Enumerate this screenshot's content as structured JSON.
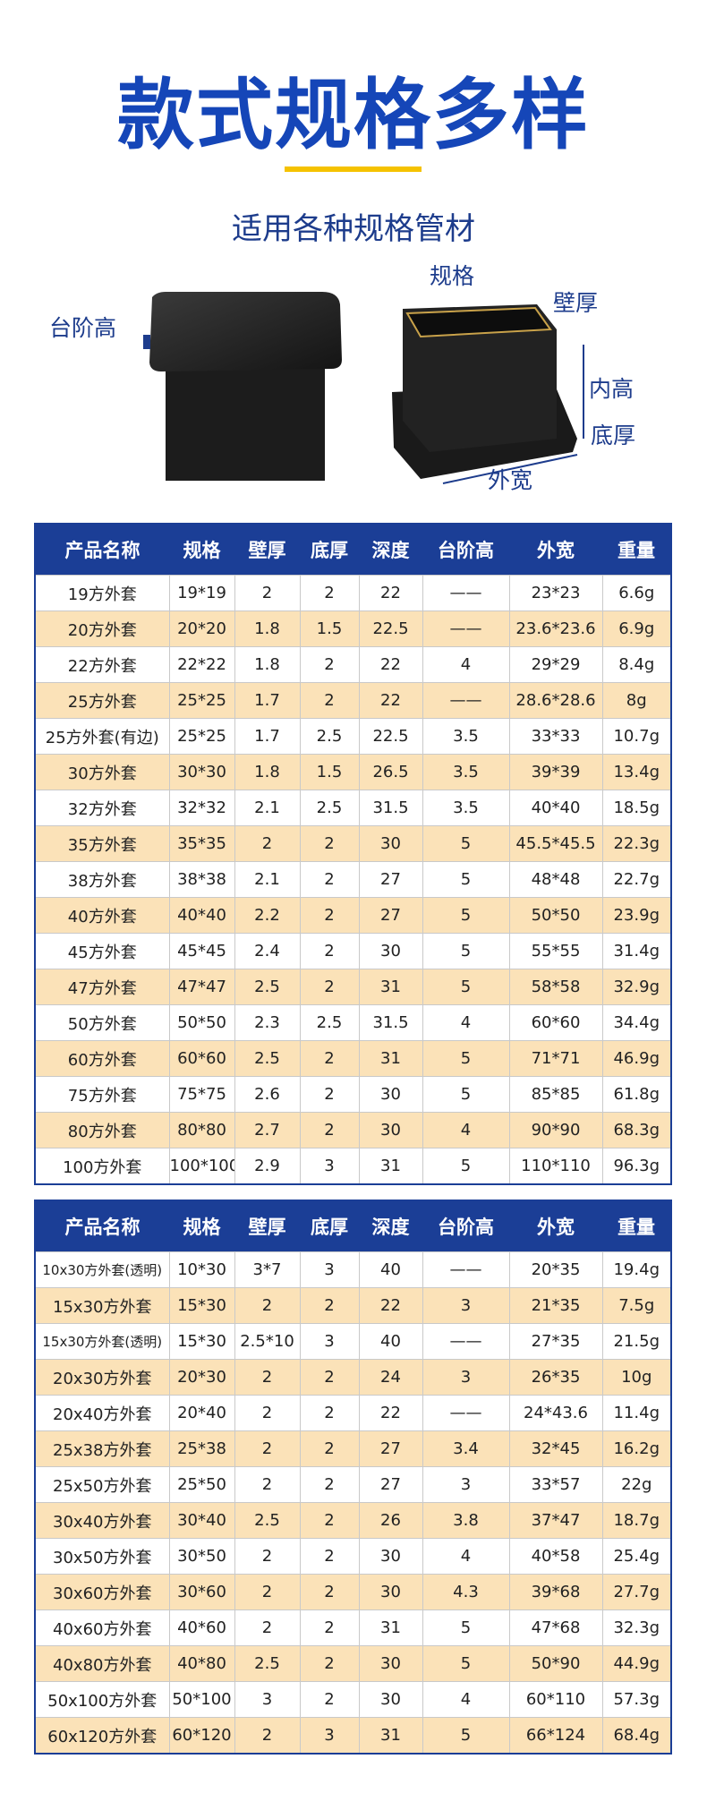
{
  "header": {
    "title": "款式规格多样",
    "subtitle": "适用各种规格管材"
  },
  "diagram": {
    "labels": [
      "台阶高",
      "规格",
      "壁厚",
      "内高",
      "底厚",
      "外宽"
    ]
  },
  "table1": {
    "columns": [
      "产品名称",
      "规格",
      "壁厚",
      "底厚",
      "深度",
      "台阶高",
      "外宽",
      "重量"
    ],
    "rows": [
      [
        "19方外套",
        "19*19",
        "2",
        "2",
        "22",
        "——",
        "23*23",
        "6.6g"
      ],
      [
        "20方外套",
        "20*20",
        "1.8",
        "1.5",
        "22.5",
        "——",
        "23.6*23.6",
        "6.9g"
      ],
      [
        "22方外套",
        "22*22",
        "1.8",
        "2",
        "22",
        "4",
        "29*29",
        "8.4g"
      ],
      [
        "25方外套",
        "25*25",
        "1.7",
        "2",
        "22",
        "——",
        "28.6*28.6",
        "8g"
      ],
      [
        "25方外套(有边)",
        "25*25",
        "1.7",
        "2.5",
        "22.5",
        "3.5",
        "33*33",
        "10.7g"
      ],
      [
        "30方外套",
        "30*30",
        "1.8",
        "1.5",
        "26.5",
        "3.5",
        "39*39",
        "13.4g"
      ],
      [
        "32方外套",
        "32*32",
        "2.1",
        "2.5",
        "31.5",
        "3.5",
        "40*40",
        "18.5g"
      ],
      [
        "35方外套",
        "35*35",
        "2",
        "2",
        "30",
        "5",
        "45.5*45.5",
        "22.3g"
      ],
      [
        "38方外套",
        "38*38",
        "2.1",
        "2",
        "27",
        "5",
        "48*48",
        "22.7g"
      ],
      [
        "40方外套",
        "40*40",
        "2.2",
        "2",
        "27",
        "5",
        "50*50",
        "23.9g"
      ],
      [
        "45方外套",
        "45*45",
        "2.4",
        "2",
        "30",
        "5",
        "55*55",
        "31.4g"
      ],
      [
        "47方外套",
        "47*47",
        "2.5",
        "2",
        "31",
        "5",
        "58*58",
        "32.9g"
      ],
      [
        "50方外套",
        "50*50",
        "2.3",
        "2.5",
        "31.5",
        "4",
        "60*60",
        "34.4g"
      ],
      [
        "60方外套",
        "60*60",
        "2.5",
        "2",
        "31",
        "5",
        "71*71",
        "46.9g"
      ],
      [
        "75方外套",
        "75*75",
        "2.6",
        "2",
        "30",
        "5",
        "85*85",
        "61.8g"
      ],
      [
        "80方外套",
        "80*80",
        "2.7",
        "2",
        "30",
        "4",
        "90*90",
        "68.3g"
      ],
      [
        "100方外套",
        "100*100",
        "2.9",
        "3",
        "31",
        "5",
        "110*110",
        "96.3g"
      ]
    ]
  },
  "table2": {
    "columns": [
      "产品名称",
      "规格",
      "壁厚",
      "底厚",
      "深度",
      "台阶高",
      "外宽",
      "重量"
    ],
    "rows": [
      [
        "10x30方外套(透明)",
        "10*30",
        "3*7",
        "3",
        "40",
        "——",
        "20*35",
        "19.4g"
      ],
      [
        "15x30方外套",
        "15*30",
        "2",
        "2",
        "22",
        "3",
        "21*35",
        "7.5g"
      ],
      [
        "15x30方外套(透明)",
        "15*30",
        "2.5*10",
        "3",
        "40",
        "——",
        "27*35",
        "21.5g"
      ],
      [
        "20x30方外套",
        "20*30",
        "2",
        "2",
        "24",
        "3",
        "26*35",
        "10g"
      ],
      [
        "20x40方外套",
        "20*40",
        "2",
        "2",
        "22",
        "——",
        "24*43.6",
        "11.4g"
      ],
      [
        "25x38方外套",
        "25*38",
        "2",
        "2",
        "27",
        "3.4",
        "32*45",
        "16.2g"
      ],
      [
        "25x50方外套",
        "25*50",
        "2",
        "2",
        "27",
        "3",
        "33*57",
        "22g"
      ],
      [
        "30x40方外套",
        "30*40",
        "2.5",
        "2",
        "26",
        "3.8",
        "37*47",
        "18.7g"
      ],
      [
        "30x50方外套",
        "30*50",
        "2",
        "2",
        "30",
        "4",
        "40*58",
        "25.4g"
      ],
      [
        "30x60方外套",
        "30*60",
        "2",
        "2",
        "30",
        "4.3",
        "39*68",
        "27.7g"
      ],
      [
        "40x60方外套",
        "40*60",
        "2",
        "2",
        "31",
        "5",
        "47*68",
        "32.3g"
      ],
      [
        "40x80方外套",
        "40*80",
        "2.5",
        "2",
        "30",
        "5",
        "50*90",
        "44.9g"
      ],
      [
        "50x100方外套",
        "50*100",
        "3",
        "2",
        "30",
        "4",
        "60*110",
        "57.3g"
      ],
      [
        "60x120方外套",
        "60*120",
        "2",
        "3",
        "31",
        "5",
        "66*124",
        "68.4g"
      ]
    ]
  }
}
